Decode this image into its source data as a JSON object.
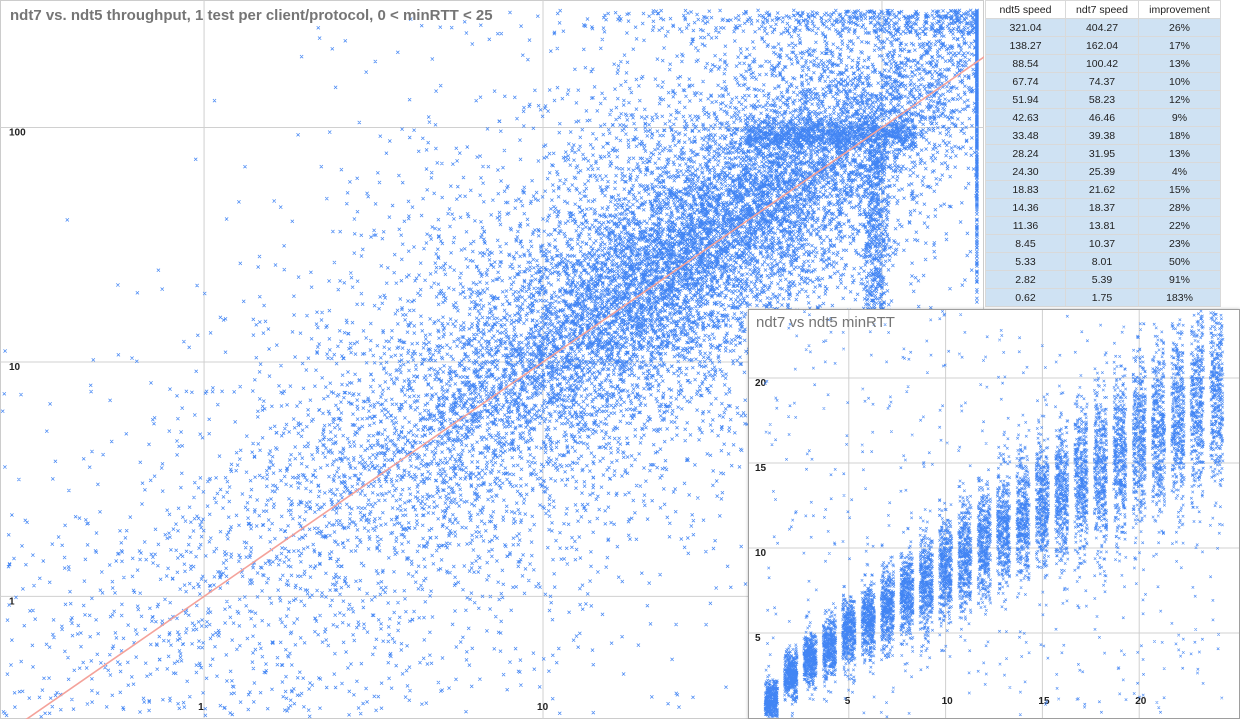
{
  "main_title": "ndt7 vs. ndt5 throughput, 1 test per client/protocol, 0 < minRTT < 25",
  "inset_title": "ndt7 vs ndt5 minRTT",
  "table": {
    "headers": [
      "ndt5 speed",
      "ndt7 speed",
      "improvement"
    ],
    "rows": [
      [
        "321.04",
        "404.27",
        "26%"
      ],
      [
        "138.27",
        "162.04",
        "17%"
      ],
      [
        "88.54",
        "100.42",
        "13%"
      ],
      [
        "67.74",
        "74.37",
        "10%"
      ],
      [
        "51.94",
        "58.23",
        "12%"
      ],
      [
        "42.63",
        "46.46",
        "9%"
      ],
      [
        "33.48",
        "39.38",
        "18%"
      ],
      [
        "28.24",
        "31.95",
        "13%"
      ],
      [
        "24.30",
        "25.39",
        "4%"
      ],
      [
        "18.83",
        "21.62",
        "15%"
      ],
      [
        "14.36",
        "18.37",
        "28%"
      ],
      [
        "11.36",
        "13.81",
        "22%"
      ],
      [
        "8.45",
        "10.37",
        "23%"
      ],
      [
        "5.33",
        "8.01",
        "50%"
      ],
      [
        "2.82",
        "5.39",
        "91%"
      ],
      [
        "0.62",
        "1.75",
        "183%"
      ]
    ]
  },
  "colors": {
    "points": "#4285f4",
    "diagonal": "#f4a29a",
    "grid": "#d0d0d0",
    "table_fill": "#cfe2f3"
  },
  "chart_data": [
    {
      "type": "scatter",
      "title": "ndt7 vs. ndt5 throughput, 1 test per client/protocol, 0 < minRTT < 25",
      "xscale": "log",
      "yscale": "log",
      "xlim": [
        0.25,
        200
      ],
      "ylim": [
        0.3,
        350
      ],
      "x_ticks": [
        "1",
        "10",
        "100"
      ],
      "y_ticks": [
        "1",
        "10",
        "100"
      ],
      "marker": "x",
      "reference_line": {
        "type": "y=x",
        "color": "#f4a29a"
      },
      "grid": true,
      "point_density_summary": {
        "bins_ndt5": [
          321.04,
          138.27,
          88.54,
          67.74,
          51.94,
          42.63,
          33.48,
          28.24,
          24.3,
          18.83,
          14.36,
          11.36,
          8.45,
          5.33,
          2.82,
          0.62
        ],
        "bins_ndt7": [
          404.27,
          162.04,
          100.42,
          74.37,
          58.23,
          46.46,
          39.38,
          31.95,
          25.39,
          21.62,
          18.37,
          13.81,
          10.37,
          8.01,
          5.39,
          1.75
        ]
      }
    },
    {
      "type": "scatter",
      "title": "ndt7 vs ndt5 minRTT",
      "xlim": [
        0,
        25
      ],
      "ylim": [
        0,
        24
      ],
      "x_ticks": [
        "5",
        "10",
        "15",
        "20"
      ],
      "y_ticks": [
        "5",
        "10",
        "15",
        "20"
      ],
      "marker": "x",
      "grid": true,
      "x_columns": [
        1,
        2,
        3,
        4,
        5,
        6,
        7,
        8,
        9,
        10,
        11,
        12,
        13,
        14,
        15,
        16,
        17,
        18,
        19,
        20,
        21,
        22,
        23,
        24
      ],
      "column_centers_y": [
        1.0,
        2.5,
        3.5,
        4.2,
        5.0,
        5.8,
        6.5,
        7.3,
        8.0,
        8.7,
        9.5,
        10.2,
        11.0,
        11.8,
        12.5,
        13.2,
        14.0,
        14.7,
        15.5,
        16.2,
        17.0,
        17.7,
        18.5,
        19.2
      ]
    }
  ]
}
